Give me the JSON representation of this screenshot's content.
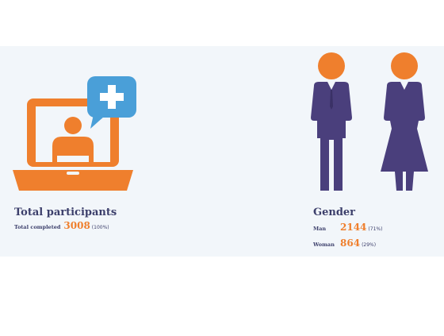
{
  "colors": {
    "navy": "#3c3f6b",
    "orange": "#ef7f2d",
    "purple": "#4a3f7c",
    "blue": "#4a9fd8",
    "panel_bg": "#f2f6fa"
  },
  "participants": {
    "icon": "telehealth-laptop-icon",
    "title": "Total participants",
    "completed_label": "Total completed",
    "completed_value": "3008",
    "completed_pct": "(100%)"
  },
  "gender": {
    "icon": "man-woman-icon",
    "title": "Gender",
    "rows": [
      {
        "label": "Man",
        "value": "2144",
        "pct": "(71%)"
      },
      {
        "label": "Woman",
        "value": "864",
        "pct": "(29%)"
      }
    ]
  }
}
